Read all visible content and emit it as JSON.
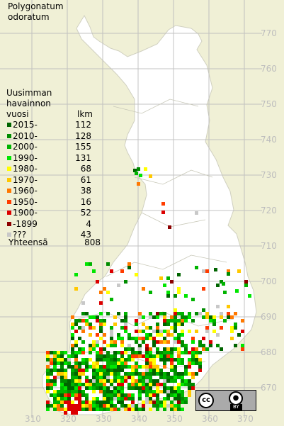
{
  "title": {
    "line1": "Polygonatum",
    "line2": "odoratum"
  },
  "legend": {
    "header_line1": "Uusimman",
    "header_line2": "havainnon",
    "header_line3": "vuosi",
    "count_header": "lkm",
    "rows": [
      {
        "label": "2015-",
        "count": "112",
        "color": "#006400"
      },
      {
        "label": "2010-",
        "count": "128",
        "color": "#008c00"
      },
      {
        "label": "2000-",
        "count": "155",
        "color": "#00b400"
      },
      {
        "label": "1990-",
        "count": "131",
        "color": "#00e600"
      },
      {
        "label": "1980-",
        "count": "68",
        "color": "#ffff00"
      },
      {
        "label": "1970-",
        "count": "61",
        "color": "#ffc800"
      },
      {
        "label": "1960-",
        "count": "38",
        "color": "#ff7800"
      },
      {
        "label": "1950-",
        "count": "16",
        "color": "#ff3c00"
      },
      {
        "label": "1900-",
        "count": "52",
        "color": "#dc0000"
      },
      {
        "label": "-1899",
        "count": "4",
        "color": "#8c0000"
      },
      {
        "label": "???",
        "count": "43",
        "color": "#c8c8c8"
      }
    ],
    "total_label": "Yhteensä",
    "total_count": "808"
  },
  "grid_labels": {
    "northing": [
      "770",
      "760",
      "750",
      "740",
      "730",
      "720",
      "710",
      "700",
      "690",
      "680",
      "670"
    ],
    "easting": [
      "310",
      "320",
      "330",
      "340",
      "350",
      "360",
      "370"
    ]
  },
  "license": {
    "cc": "cc",
    "by": "BY"
  },
  "colors": {
    "background": "#f0f0d6",
    "land": "#ffffff",
    "grid": "#bdbdbd"
  }
}
